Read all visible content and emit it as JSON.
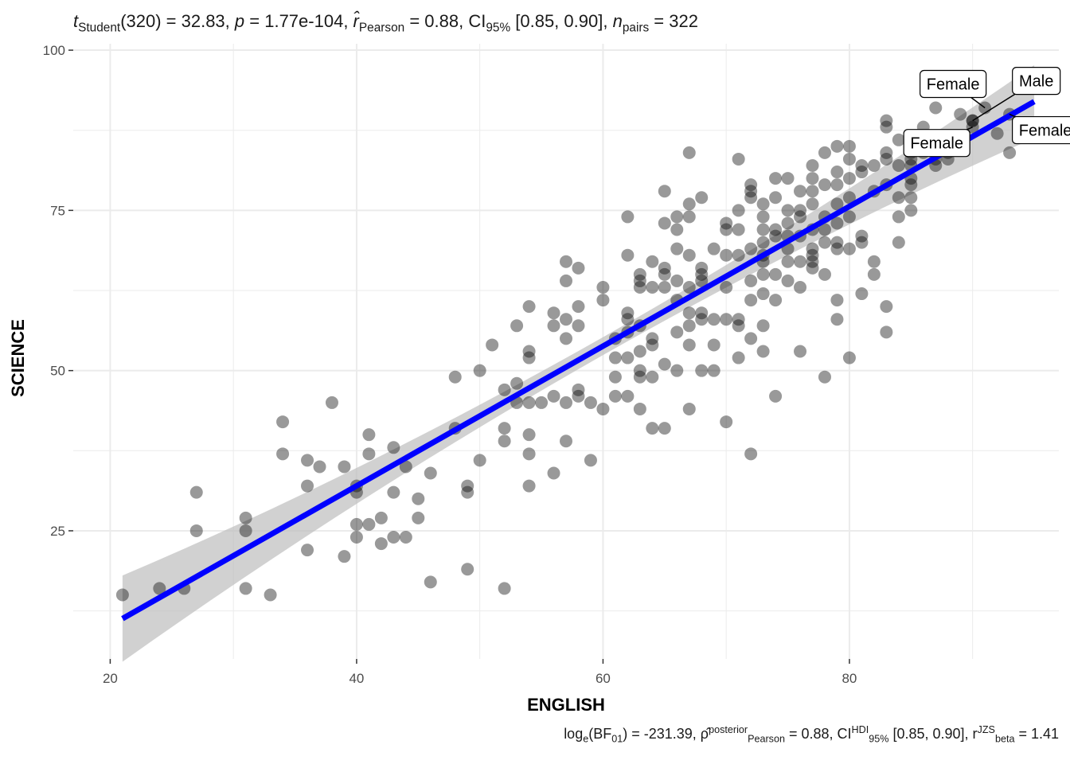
{
  "subtitle": {
    "t": "t",
    "t_sub": "Student",
    "t_val": "(320) = 32.83, ",
    "p": "p",
    "p_val": " = 1.77e-104, ",
    "r": "r̂",
    "r_sub": "Pearson",
    "r_val": " = 0.88, CI",
    "ci_sub": "95%",
    "ci_val": " [0.85, 0.90], ",
    "n": "n",
    "n_sub": "pairs",
    "n_val": " = 322"
  },
  "caption": {
    "bf": "log",
    "bf_sub": "e",
    "bf_open": "(BF",
    "bf_01": "01",
    "bf_val": ") = -231.39, ρ̂",
    "rho_sup": "posterior",
    "rho_sub": "Pearson",
    "rho_val": " = 0.88, CI",
    "ci_sup": "HDI",
    "ci_sub": "95%",
    "ci_val": " [0.85, 0.90], r",
    "r_sup": "JZS",
    "r_sub": "beta",
    "r_val": " = 1.41"
  },
  "colors": {
    "points": "#000000",
    "fit_line": "#0000ff",
    "ci_band": "#bebebe",
    "grid": "#ebebeb"
  },
  "chart_data": {
    "type": "scatter",
    "xlabel": "ENGLISH",
    "ylabel": "SCIENCE",
    "xlim": [
      17,
      97
    ],
    "ylim": [
      5,
      101
    ],
    "xticks": [
      20,
      40,
      60,
      80
    ],
    "yticks": [
      25,
      50,
      75,
      100
    ],
    "grid": true,
    "points": [
      [
        21,
        15
      ],
      [
        24,
        16
      ],
      [
        26,
        16
      ],
      [
        27,
        31
      ],
      [
        27,
        25
      ],
      [
        31,
        27
      ],
      [
        31,
        25
      ],
      [
        31,
        16
      ],
      [
        33,
        15
      ],
      [
        34,
        42
      ],
      [
        34,
        37
      ],
      [
        36,
        36
      ],
      [
        36,
        32
      ],
      [
        36,
        22
      ],
      [
        37,
        35
      ],
      [
        38,
        45
      ],
      [
        39,
        35
      ],
      [
        39,
        21
      ],
      [
        40,
        32
      ],
      [
        40,
        31
      ],
      [
        40,
        26
      ],
      [
        40,
        24
      ],
      [
        41,
        40
      ],
      [
        41,
        37
      ],
      [
        41,
        26
      ],
      [
        42,
        27
      ],
      [
        42,
        23
      ],
      [
        43,
        38
      ],
      [
        43,
        31
      ],
      [
        43,
        24
      ],
      [
        44,
        35
      ],
      [
        44,
        24
      ],
      [
        45,
        30
      ],
      [
        45,
        27
      ],
      [
        46,
        34
      ],
      [
        46,
        17
      ],
      [
        48,
        49
      ],
      [
        48,
        41
      ],
      [
        49,
        32
      ],
      [
        49,
        31
      ],
      [
        49,
        19
      ],
      [
        50,
        50
      ],
      [
        50,
        36
      ],
      [
        51,
        54
      ],
      [
        52,
        47
      ],
      [
        52,
        41
      ],
      [
        52,
        39
      ],
      [
        52,
        16
      ],
      [
        53,
        57
      ],
      [
        53,
        48
      ],
      [
        53,
        45
      ],
      [
        54,
        60
      ],
      [
        54,
        53
      ],
      [
        54,
        52
      ],
      [
        54,
        40
      ],
      [
        54,
        37
      ],
      [
        54,
        32
      ],
      [
        54,
        45
      ],
      [
        55,
        45
      ],
      [
        56,
        59
      ],
      [
        56,
        57
      ],
      [
        56,
        46
      ],
      [
        56,
        34
      ],
      [
        57,
        67
      ],
      [
        57,
        64
      ],
      [
        57,
        58
      ],
      [
        57,
        55
      ],
      [
        57,
        45
      ],
      [
        57,
        39
      ],
      [
        58,
        66
      ],
      [
        58,
        60
      ],
      [
        58,
        57
      ],
      [
        58,
        47
      ],
      [
        58,
        46
      ],
      [
        59,
        45
      ],
      [
        59,
        36
      ],
      [
        60,
        63
      ],
      [
        60,
        61
      ],
      [
        60,
        44
      ],
      [
        61,
        55
      ],
      [
        61,
        52
      ],
      [
        61,
        49
      ],
      [
        61,
        46
      ],
      [
        62,
        74
      ],
      [
        62,
        68
      ],
      [
        62,
        59
      ],
      [
        62,
        58
      ],
      [
        62,
        56
      ],
      [
        62,
        52
      ],
      [
        62,
        46
      ],
      [
        63,
        65
      ],
      [
        63,
        64
      ],
      [
        63,
        63
      ],
      [
        63,
        57
      ],
      [
        63,
        53
      ],
      [
        63,
        50
      ],
      [
        63,
        49
      ],
      [
        63,
        44
      ],
      [
        64,
        67
      ],
      [
        64,
        63
      ],
      [
        64,
        55
      ],
      [
        64,
        54
      ],
      [
        64,
        49
      ],
      [
        64,
        41
      ],
      [
        65,
        78
      ],
      [
        65,
        73
      ],
      [
        65,
        66
      ],
      [
        65,
        65
      ],
      [
        65,
        63
      ],
      [
        65,
        51
      ],
      [
        65,
        41
      ],
      [
        66,
        74
      ],
      [
        66,
        72
      ],
      [
        66,
        69
      ],
      [
        66,
        64
      ],
      [
        66,
        61
      ],
      [
        66,
        56
      ],
      [
        66,
        50
      ],
      [
        67,
        84
      ],
      [
        67,
        76
      ],
      [
        67,
        74
      ],
      [
        67,
        68
      ],
      [
        67,
        63
      ],
      [
        67,
        59
      ],
      [
        67,
        57
      ],
      [
        67,
        54
      ],
      [
        67,
        44
      ],
      [
        68,
        77
      ],
      [
        68,
        66
      ],
      [
        68,
        65
      ],
      [
        68,
        64
      ],
      [
        68,
        59
      ],
      [
        68,
        58
      ],
      [
        68,
        50
      ],
      [
        69,
        69
      ],
      [
        69,
        58
      ],
      [
        69,
        54
      ],
      [
        69,
        50
      ],
      [
        70,
        73
      ],
      [
        70,
        72
      ],
      [
        70,
        68
      ],
      [
        70,
        63
      ],
      [
        70,
        58
      ],
      [
        70,
        42
      ],
      [
        71,
        83
      ],
      [
        71,
        75
      ],
      [
        71,
        72
      ],
      [
        71,
        68
      ],
      [
        71,
        58
      ],
      [
        71,
        57
      ],
      [
        71,
        52
      ],
      [
        72,
        79
      ],
      [
        72,
        78
      ],
      [
        72,
        77
      ],
      [
        72,
        69
      ],
      [
        72,
        64
      ],
      [
        72,
        61
      ],
      [
        72,
        55
      ],
      [
        72,
        37
      ],
      [
        73,
        76
      ],
      [
        73,
        74
      ],
      [
        73,
        72
      ],
      [
        73,
        70
      ],
      [
        73,
        68
      ],
      [
        73,
        67
      ],
      [
        73,
        65
      ],
      [
        73,
        62
      ],
      [
        73,
        57
      ],
      [
        73,
        53
      ],
      [
        74,
        80
      ],
      [
        74,
        77
      ],
      [
        74,
        72
      ],
      [
        74,
        71
      ],
      [
        74,
        65
      ],
      [
        74,
        61
      ],
      [
        74,
        46
      ],
      [
        75,
        80
      ],
      [
        75,
        75
      ],
      [
        75,
        73
      ],
      [
        75,
        71
      ],
      [
        75,
        69
      ],
      [
        75,
        67
      ],
      [
        75,
        64
      ],
      [
        76,
        78
      ],
      [
        76,
        75
      ],
      [
        76,
        74
      ],
      [
        76,
        71
      ],
      [
        76,
        67
      ],
      [
        76,
        63
      ],
      [
        76,
        53
      ],
      [
        77,
        82
      ],
      [
        77,
        80
      ],
      [
        77,
        78
      ],
      [
        77,
        76
      ],
      [
        77,
        72
      ],
      [
        77,
        69
      ],
      [
        77,
        68
      ],
      [
        77,
        67
      ],
      [
        77,
        66
      ],
      [
        78,
        84
      ],
      [
        78,
        79
      ],
      [
        78,
        74
      ],
      [
        78,
        72
      ],
      [
        78,
        70
      ],
      [
        78,
        65
      ],
      [
        78,
        49
      ],
      [
        79,
        85
      ],
      [
        79,
        81
      ],
      [
        79,
        79
      ],
      [
        79,
        76
      ],
      [
        79,
        73
      ],
      [
        79,
        70
      ],
      [
        79,
        69
      ],
      [
        79,
        61
      ],
      [
        79,
        58
      ],
      [
        80,
        85
      ],
      [
        80,
        83
      ],
      [
        80,
        80
      ],
      [
        80,
        77
      ],
      [
        80,
        74
      ],
      [
        80,
        69
      ],
      [
        80,
        52
      ],
      [
        81,
        82
      ],
      [
        81,
        81
      ],
      [
        81,
        71
      ],
      [
        81,
        70
      ],
      [
        81,
        62
      ],
      [
        82,
        82
      ],
      [
        82,
        78
      ],
      [
        82,
        67
      ],
      [
        82,
        65
      ],
      [
        83,
        89
      ],
      [
        83,
        88
      ],
      [
        83,
        84
      ],
      [
        83,
        83
      ],
      [
        83,
        79
      ],
      [
        83,
        60
      ],
      [
        83,
        56
      ],
      [
        84,
        86
      ],
      [
        84,
        82
      ],
      [
        84,
        77
      ],
      [
        84,
        74
      ],
      [
        84,
        70
      ],
      [
        85,
        85
      ],
      [
        85,
        84
      ],
      [
        85,
        83
      ],
      [
        85,
        82
      ],
      [
        85,
        80
      ],
      [
        85,
        79
      ],
      [
        85,
        77
      ],
      [
        85,
        75
      ],
      [
        86,
        88
      ],
      [
        86,
        84
      ],
      [
        87,
        91
      ],
      [
        87,
        83
      ],
      [
        87,
        82
      ],
      [
        88,
        86
      ],
      [
        88,
        84
      ],
      [
        88,
        83
      ],
      [
        89,
        90
      ],
      [
        90,
        89
      ],
      [
        90,
        88
      ],
      [
        90,
        89
      ],
      [
        91,
        91
      ],
      [
        92,
        87
      ],
      [
        93,
        90
      ],
      [
        93,
        84
      ]
    ],
    "fit": {
      "slope": 1.0903,
      "intercept": -11.6
    },
    "ci_band": [
      [
        21,
        8
      ],
      [
        60,
        52.5
      ],
      [
        95,
        95
      ]
    ],
    "ci_band_upper": [
      [
        21,
        14.2
      ],
      [
        60,
        55.5
      ],
      [
        95,
        89.5
      ]
    ],
    "labels": [
      {
        "text": "Female",
        "x": 91,
        "y": 91
      },
      {
        "text": "Male",
        "x": 90,
        "y": 89
      },
      {
        "text": "Female",
        "x": 90,
        "y": 88
      },
      {
        "text": "Female",
        "x": 93,
        "y": 90
      }
    ]
  }
}
